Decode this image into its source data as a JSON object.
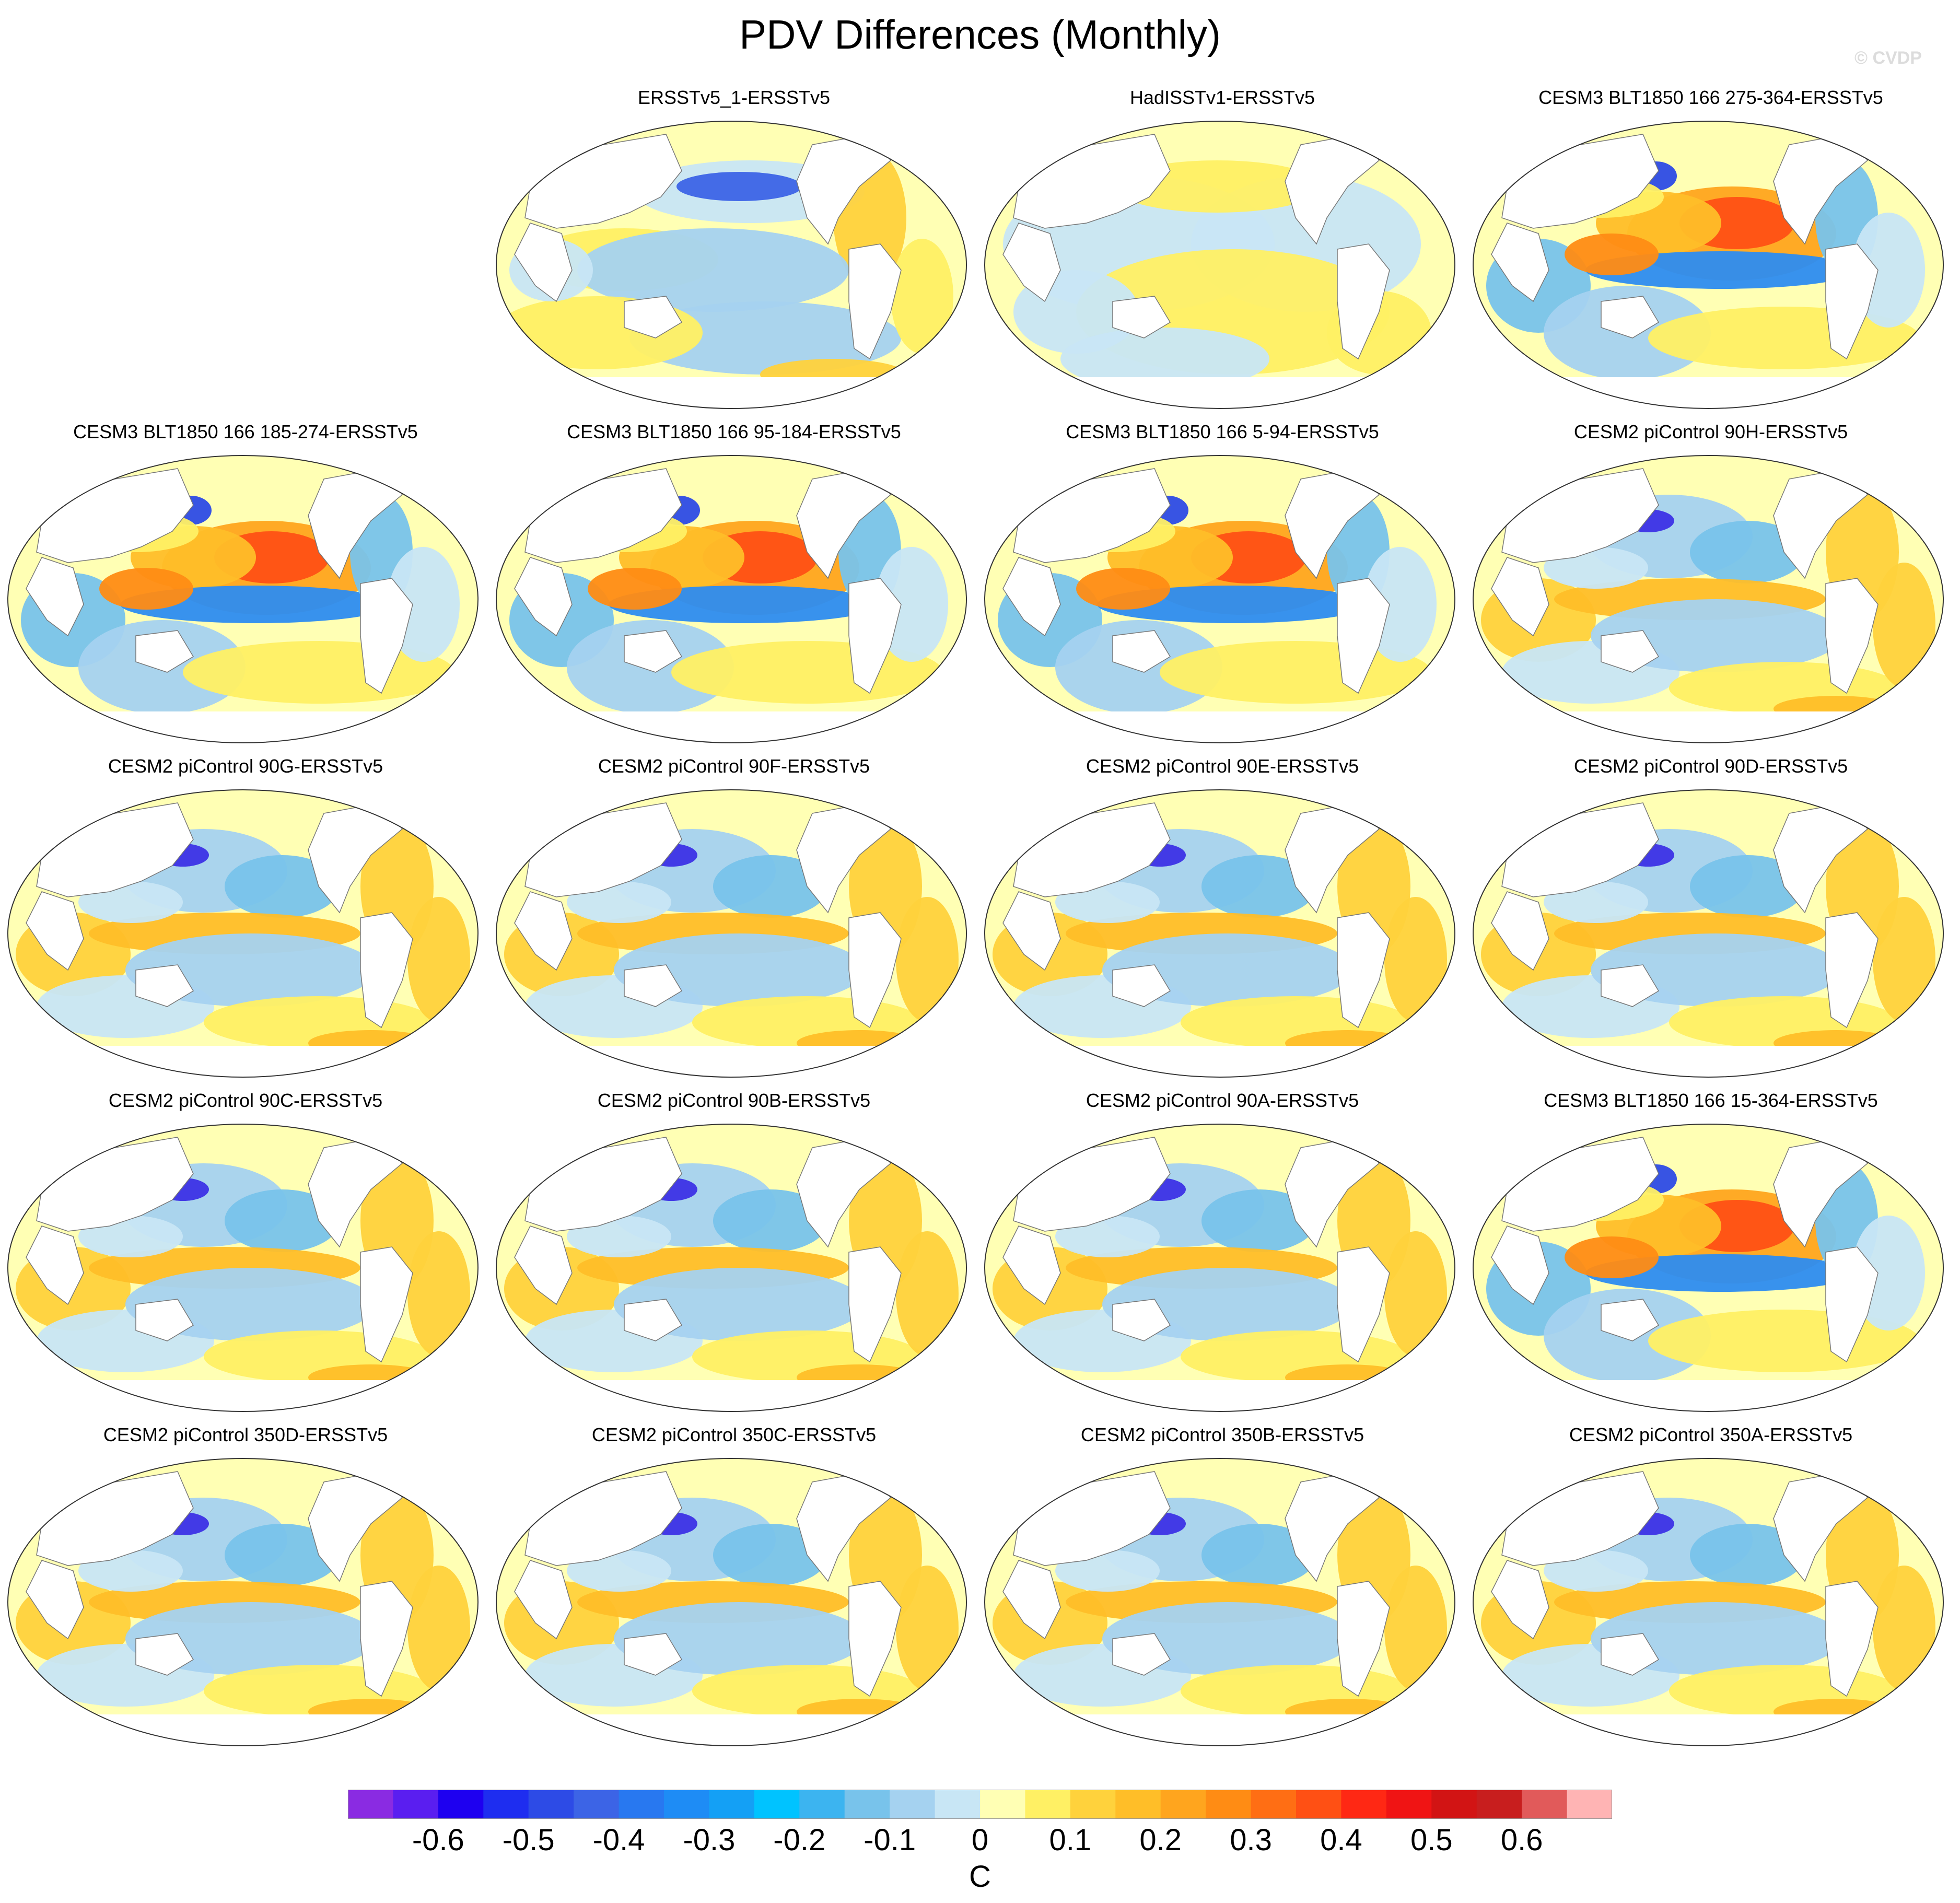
{
  "title": "PDV Differences (Monthly)",
  "watermark": "© CVDP",
  "panels": [
    {
      "title": "",
      "empty": true,
      "variant": 0
    },
    {
      "title": "ERSSTv5_1-ERSSTv5",
      "variant": 1
    },
    {
      "title": "HadISSTv1-ERSSTv5",
      "variant": 2
    },
    {
      "title": "CESM3 BLT1850 166 275-364-ERSSTv5",
      "variant": 3
    },
    {
      "title": "CESM3 BLT1850 166 185-274-ERSSTv5",
      "variant": 3
    },
    {
      "title": "CESM3 BLT1850 166 95-184-ERSSTv5",
      "variant": 3
    },
    {
      "title": "CESM3 BLT1850 166 5-94-ERSSTv5",
      "variant": 3
    },
    {
      "title": "CESM2 piControl 90H-ERSSTv5",
      "variant": 4
    },
    {
      "title": "CESM2 piControl 90G-ERSSTv5",
      "variant": 4
    },
    {
      "title": "CESM2 piControl 90F-ERSSTv5",
      "variant": 4
    },
    {
      "title": "CESM2 piControl 90E-ERSSTv5",
      "variant": 4
    },
    {
      "title": "CESM2 piControl 90D-ERSSTv5",
      "variant": 4
    },
    {
      "title": "CESM2 piControl 90C-ERSSTv5",
      "variant": 4
    },
    {
      "title": "CESM2 piControl 90B-ERSSTv5",
      "variant": 4
    },
    {
      "title": "CESM2 piControl 90A-ERSSTv5",
      "variant": 4
    },
    {
      "title": "CESM3 BLT1850 166 15-364-ERSSTv5",
      "variant": 3
    },
    {
      "title": "CESM2 piControl 350D-ERSSTv5",
      "variant": 4
    },
    {
      "title": "CESM2 piControl 350C-ERSSTv5",
      "variant": 4
    },
    {
      "title": "CESM2 piControl 350B-ERSSTv5",
      "variant": 4
    },
    {
      "title": "CESM2 piControl 350A-ERSSTv5",
      "variant": 4
    }
  ],
  "colorbar": {
    "units": "C",
    "colors": [
      "#8a2be2",
      "#5a1ef0",
      "#1e00f0",
      "#1e2df0",
      "#2d4be6",
      "#3c64e6",
      "#2878f0",
      "#1e8cf5",
      "#14a0f5",
      "#00c3ff",
      "#3cb4f0",
      "#78c3eb",
      "#a5d2f0",
      "#c8e6f5",
      "#ffffb4",
      "#fff064",
      "#ffd23c",
      "#ffbe28",
      "#ffa51e",
      "#ff8c14",
      "#ff6e14",
      "#ff5014",
      "#ff2814",
      "#f01414",
      "#d21414",
      "#c81e1e",
      "#e15a5a",
      "#ffb4b4"
    ],
    "labels": [
      "-0.6",
      "-0.5",
      "-0.4",
      "-0.3",
      "-0.2",
      "-0.1",
      "0",
      "0.1",
      "0.2",
      "0.3",
      "0.4",
      "0.5",
      "0.6"
    ]
  }
}
